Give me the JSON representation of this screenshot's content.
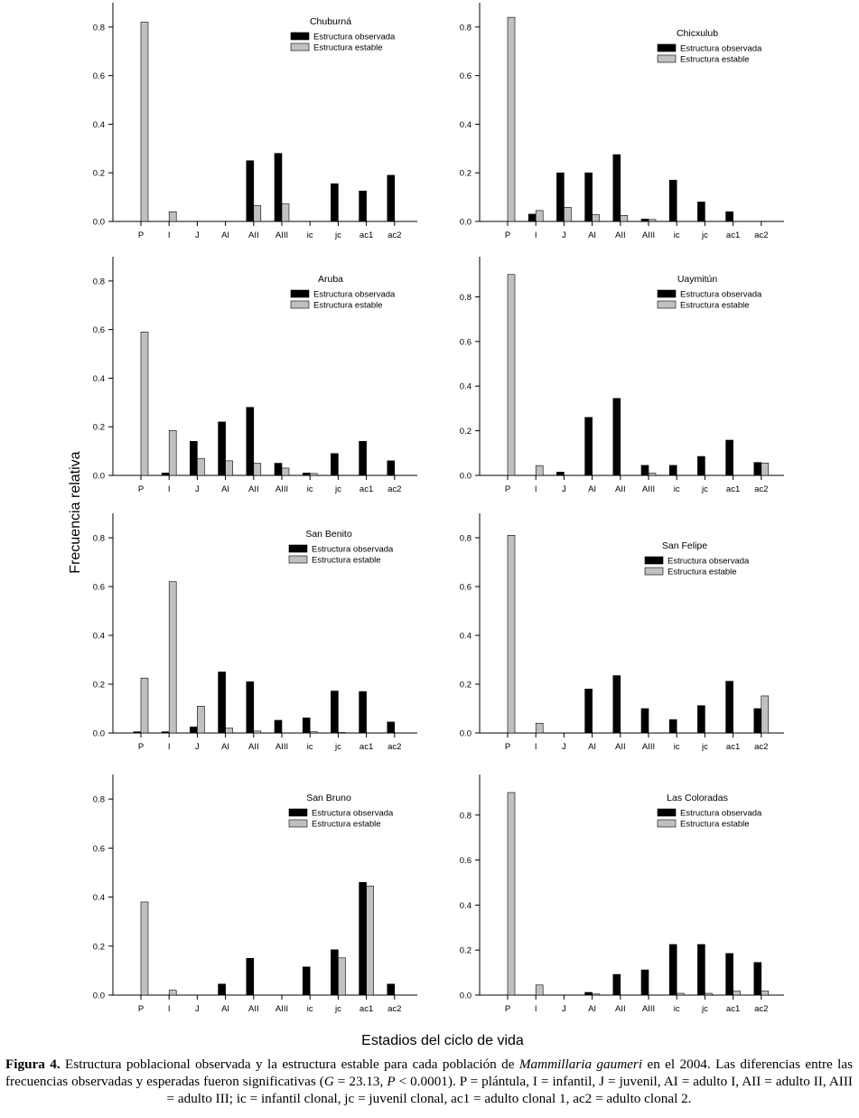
{
  "figure": {
    "ylabel": "Frecuencia relativa",
    "xlabel": "Estadios del ciclo de vida",
    "categories": [
      "P",
      "I",
      "J",
      "AI",
      "AII",
      "AIII",
      "ic",
      "jc",
      "ac1",
      "ac2"
    ],
    "legend": {
      "observed": "Estructura observada",
      "stable": "Estructura estable"
    },
    "colors": {
      "observed": "#000000",
      "stable": "#c0c0c0",
      "axis": "#000000"
    }
  },
  "chart_data": [
    {
      "type": "bar",
      "title": "Chuburná",
      "ylim": [
        0,
        0.9
      ],
      "ymax_tick": 0.8,
      "series": [
        {
          "name": "Estructura observada",
          "values": [
            0,
            0,
            0,
            0,
            0.25,
            0.28,
            0,
            0.155,
            0.125,
            0.19
          ]
        },
        {
          "name": "Estructura estable",
          "values": [
            0.82,
            0.04,
            0,
            0,
            0.065,
            0.072,
            0,
            0,
            0,
            0
          ]
        }
      ]
    },
    {
      "type": "bar",
      "title": "Chicxulub",
      "ylim": [
        0,
        0.9
      ],
      "ymax_tick": 0.8,
      "series": [
        {
          "name": "Estructura observada",
          "values": [
            0,
            0.03,
            0.2,
            0.2,
            0.275,
            0.01,
            0.17,
            0.08,
            0.04,
            0
          ]
        },
        {
          "name": "Estructura estable",
          "values": [
            0.84,
            0.045,
            0.058,
            0.028,
            0.025,
            0.008,
            0,
            0,
            0,
            0
          ]
        }
      ]
    },
    {
      "type": "bar",
      "title": "Aruba",
      "ylim": [
        0,
        0.9
      ],
      "ymax_tick": 0.8,
      "series": [
        {
          "name": "Estructura observada",
          "values": [
            0,
            0.01,
            0.14,
            0.22,
            0.28,
            0.05,
            0.01,
            0.09,
            0.14,
            0.06
          ]
        },
        {
          "name": "Estructura estable",
          "values": [
            0.59,
            0.185,
            0.07,
            0.06,
            0.05,
            0.03,
            0.008,
            0,
            0,
            0
          ]
        }
      ]
    },
    {
      "type": "bar",
      "title": "Uaymitún",
      "ylim": [
        0,
        0.98
      ],
      "ymax_tick": 0.8,
      "series": [
        {
          "name": "Estructura observada",
          "values": [
            0,
            0,
            0.015,
            0.26,
            0.345,
            0.045,
            0.045,
            0.085,
            0.158,
            0.058
          ]
        },
        {
          "name": "Estructura estable",
          "values": [
            0.9,
            0.044,
            0,
            0,
            0,
            0.01,
            0,
            0,
            0,
            0.055
          ]
        }
      ]
    },
    {
      "type": "bar",
      "title": "San Benito",
      "ylim": [
        0,
        0.9
      ],
      "ymax_tick": 0.8,
      "series": [
        {
          "name": "Estructura observada",
          "values": [
            0.005,
            0.005,
            0.025,
            0.25,
            0.21,
            0.052,
            0.062,
            0.172,
            0.17,
            0.045
          ]
        },
        {
          "name": "Estructura estable",
          "values": [
            0.225,
            0.62,
            0.11,
            0.02,
            0.008,
            0,
            0.005,
            0.002,
            0,
            0
          ]
        }
      ]
    },
    {
      "type": "bar",
      "title": "San Felipe",
      "ylim": [
        0,
        0.9
      ],
      "ymax_tick": 0.8,
      "series": [
        {
          "name": "Estructura observada",
          "values": [
            0,
            0,
            0,
            0.18,
            0.235,
            0.1,
            0.055,
            0.112,
            0.212,
            0.1
          ]
        },
        {
          "name": "Estructura estable",
          "values": [
            0.81,
            0.04,
            0,
            0,
            0,
            0,
            0,
            0,
            0,
            0.152
          ]
        }
      ]
    },
    {
      "type": "bar",
      "title": "San Bruno",
      "ylim": [
        0,
        0.9
      ],
      "ymax_tick": 0.8,
      "series": [
        {
          "name": "Estructura observada",
          "values": [
            0,
            0,
            0,
            0.045,
            0.15,
            0,
            0.115,
            0.185,
            0.46,
            0.045
          ]
        },
        {
          "name": "Estructura estable",
          "values": [
            0.38,
            0.02,
            0,
            0,
            0,
            0,
            0,
            0.152,
            0.445,
            0
          ]
        }
      ]
    },
    {
      "type": "bar",
      "title": "Las Coloradas",
      "ylim": [
        0,
        0.98
      ],
      "ymax_tick": 0.8,
      "series": [
        {
          "name": "Estructura observada",
          "values": [
            0,
            0,
            0,
            0.012,
            0.092,
            0.112,
            0.225,
            0.225,
            0.185,
            0.145
          ]
        },
        {
          "name": "Estructura estable",
          "values": [
            0.9,
            0.045,
            0,
            0.005,
            0,
            0,
            0.008,
            0.008,
            0.018,
            0.018
          ]
        }
      ]
    }
  ],
  "caption": {
    "label": "Figura 4.",
    "text1": " Estructura poblacional observada y la estructura estable para cada población de ",
    "species": "Mammillaria gaumeri",
    "text2": " en el 2004. Las diferencias entre las frecuencias observadas y esperadas fueron significativas (",
    "g_symbol": "G",
    "g_value": " = 23.13,  ",
    "p_symbol": "P",
    "p_value": " < 0.0001). P = plántula, I = infantil, J = juvenil, AI = adulto I, AII = adulto II, AIII = adulto III; ic = infantil clonal, jc = juvenil clonal, ac1 = adulto clonal 1, ac2 = adulto clonal 2."
  }
}
